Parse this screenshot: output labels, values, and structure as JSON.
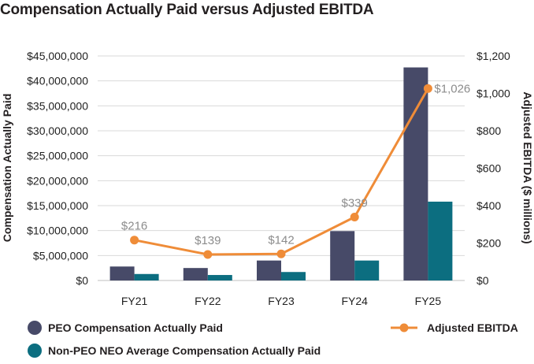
{
  "chart_data": {
    "type": "bar+line",
    "title": "Compensation Actually Paid versus Adjusted EBITDA",
    "categories": [
      "FY21",
      "FY22",
      "FY23",
      "FY24",
      "FY25"
    ],
    "series": [
      {
        "name": "PEO Compensation Actually Paid",
        "type": "bar",
        "axis": "left",
        "color": "#474a68",
        "values": [
          2800000,
          2500000,
          4000000,
          9900000,
          42700000
        ]
      },
      {
        "name": "Non-PEO NEO Average Compensation Actually Paid",
        "type": "bar",
        "axis": "left",
        "color": "#0c6e80",
        "values": [
          1300000,
          1100000,
          1700000,
          4000000,
          15800000
        ]
      },
      {
        "name": "Adjusted EBITDA",
        "type": "line",
        "axis": "right",
        "color": "#ef8c38",
        "values": [
          216,
          139,
          142,
          339,
          1026
        ],
        "labels": [
          "$216",
          "$139",
          "$142",
          "$339",
          "$1,026"
        ]
      }
    ],
    "ylabel": "Compensation Actually Paid",
    "y2label": "Adjusted EBITDA ($ millions)",
    "ylim": [
      0,
      45000000
    ],
    "y2lim": [
      0,
      1200
    ],
    "yticks": [
      0,
      5000000,
      10000000,
      15000000,
      20000000,
      25000000,
      30000000,
      35000000,
      40000000,
      45000000
    ],
    "ytick_labels": [
      "$0",
      "$5,000,000",
      "$10,000,000",
      "$15,000,000",
      "$20,000,000",
      "$25,000,000",
      "$30,000,000",
      "$35,000,000",
      "$40,000,000",
      "$45,000,000"
    ],
    "y2ticks": [
      0,
      200,
      400,
      600,
      800,
      1000,
      1200
    ],
    "y2tick_labels": [
      "$0",
      "$200",
      "$400",
      "$600",
      "$800",
      "$1,000",
      "$1,200"
    ],
    "grid": true,
    "legend_position": "bottom"
  }
}
